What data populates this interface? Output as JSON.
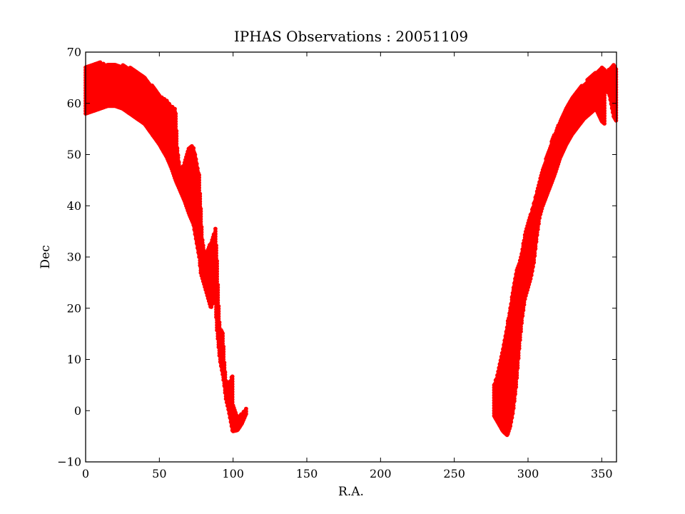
{
  "chart_data": {
    "type": "scatter",
    "title": "IPHAS Observations : 20051109",
    "xlabel": "R.A.",
    "ylabel": "Dec",
    "xlim": [
      0,
      360
    ],
    "ylim": [
      -10,
      70
    ],
    "xticks": [
      0,
      50,
      100,
      150,
      200,
      250,
      300,
      350
    ],
    "yticks": [
      -10,
      0,
      10,
      20,
      30,
      40,
      50,
      60,
      70
    ],
    "xtick_labels": [
      "0",
      "50",
      "100",
      "150",
      "200",
      "250",
      "300",
      "350"
    ],
    "ytick_labels": [
      "−10",
      "0",
      "10",
      "20",
      "30",
      "40",
      "50",
      "60",
      "70"
    ],
    "grid": false,
    "legend": false,
    "marker_color": "#ff0000",
    "series": [
      {
        "marker": "filled-circle",
        "regions": [
          {
            "upper": [
              [
                0,
                67
              ],
              [
                5,
                67.5
              ],
              [
                10,
                68
              ],
              [
                15,
                67.5
              ],
              [
                20,
                67.5
              ],
              [
                25,
                67.5
              ],
              [
                30,
                67
              ],
              [
                35,
                66
              ],
              [
                40,
                65
              ],
              [
                45,
                63.5
              ],
              [
                50,
                61.5
              ],
              [
                55,
                60.5
              ],
              [
                58,
                59.5
              ],
              [
                61,
                58.8
              ],
              [
                62,
                52
              ],
              [
                64,
                47
              ],
              [
                67,
                48.5
              ],
              [
                70,
                51.5
              ],
              [
                73,
                51.8
              ],
              [
                77,
                46
              ],
              [
                78,
                40
              ],
              [
                79,
                34
              ],
              [
                81,
                30
              ],
              [
                85,
                33
              ],
              [
                88,
                35.5
              ],
              [
                89,
                30
              ],
              [
                90,
                22
              ],
              [
                91,
                16
              ],
              [
                93,
                15.5
              ],
              [
                94,
                10
              ],
              [
                95,
                6.2
              ],
              [
                97,
                5.5
              ],
              [
                99,
                6.5
              ],
              [
                100,
                7
              ]
            ],
            "lower": [
              [
                0,
                58
              ],
              [
                5,
                58.5
              ],
              [
                10,
                59
              ],
              [
                15,
                59.5
              ],
              [
                20,
                59.5
              ],
              [
                25,
                59
              ],
              [
                30,
                58
              ],
              [
                35,
                57
              ],
              [
                40,
                56
              ],
              [
                45,
                54
              ],
              [
                50,
                52
              ],
              [
                55,
                49.5
              ],
              [
                58,
                47.5
              ],
              [
                61,
                45
              ],
              [
                64,
                43
              ],
              [
                67,
                41
              ],
              [
                70,
                38.5
              ],
              [
                73,
                36.5
              ],
              [
                77,
                30
              ],
              [
                78,
                27
              ],
              [
                80,
                25
              ],
              [
                83,
                22
              ],
              [
                85,
                20
              ],
              [
                87,
                22
              ],
              [
                88,
                21
              ],
              [
                89,
                16
              ],
              [
                90,
                13
              ],
              [
                91,
                10
              ],
              [
                93,
                7
              ],
              [
                94,
                5
              ],
              [
                95,
                2.5
              ],
              [
                97,
                0
              ],
              [
                99,
                -3
              ],
              [
                100,
                -4.5
              ]
            ]
          },
          {
            "upper": [
              [
                100,
                1
              ],
              [
                103,
                -1.5
              ],
              [
                106,
                -0.5
              ],
              [
                109,
                0.5
              ]
            ],
            "lower": [
              [
                100,
                -4
              ],
              [
                103,
                -3.8
              ],
              [
                106,
                -2.5
              ],
              [
                109,
                -0.5
              ]
            ]
          },
          {
            "upper": [
              [
                277,
                5
              ],
              [
                280,
                8
              ],
              [
                283,
                12
              ],
              [
                286,
                17
              ],
              [
                289,
                22
              ],
              [
                292,
                27
              ],
              [
                295,
                30
              ],
              [
                298,
                34.5
              ],
              [
                301,
                37.5
              ],
              [
                304,
                40.5
              ],
              [
                307,
                44
              ],
              [
                310,
                47
              ],
              [
                313,
                50
              ],
              [
                316,
                52.5
              ],
              [
                320,
                55.5
              ],
              [
                325,
                58.5
              ],
              [
                330,
                61
              ],
              [
                335,
                63
              ],
              [
                340,
                64.5
              ],
              [
                345,
                66
              ],
              [
                350,
                67
              ],
              [
                352,
                66.5
              ]
            ],
            "lower": [
              [
                277,
                -1
              ],
              [
                280,
                -2.5
              ],
              [
                283,
                -4
              ],
              [
                286,
                -4.8
              ],
              [
                288,
                -3
              ],
              [
                290,
                0
              ],
              [
                292,
                5
              ],
              [
                294,
                12
              ],
              [
                296,
                18
              ],
              [
                298,
                22
              ],
              [
                300,
                24
              ],
              [
                302,
                26
              ],
              [
                304,
                29
              ],
              [
                306,
                34
              ],
              [
                308,
                38
              ],
              [
                310,
                40
              ],
              [
                314,
                43
              ],
              [
                318,
                46
              ],
              [
                322,
                49.5
              ],
              [
                326,
                52
              ],
              [
                330,
                54
              ],
              [
                334,
                55.5
              ],
              [
                338,
                57
              ],
              [
                342,
                58
              ],
              [
                346,
                59
              ],
              [
                350,
                56.5
              ],
              [
                352,
                56
              ]
            ]
          },
          {
            "upper": [
              [
                352,
                66
              ],
              [
                355,
                66.8
              ],
              [
                358,
                67.5
              ],
              [
                360,
                67
              ]
            ],
            "lower": [
              [
                352,
                62.5
              ],
              [
                355,
                62
              ],
              [
                358,
                57.5
              ],
              [
                360,
                56.5
              ]
            ]
          }
        ]
      }
    ]
  }
}
